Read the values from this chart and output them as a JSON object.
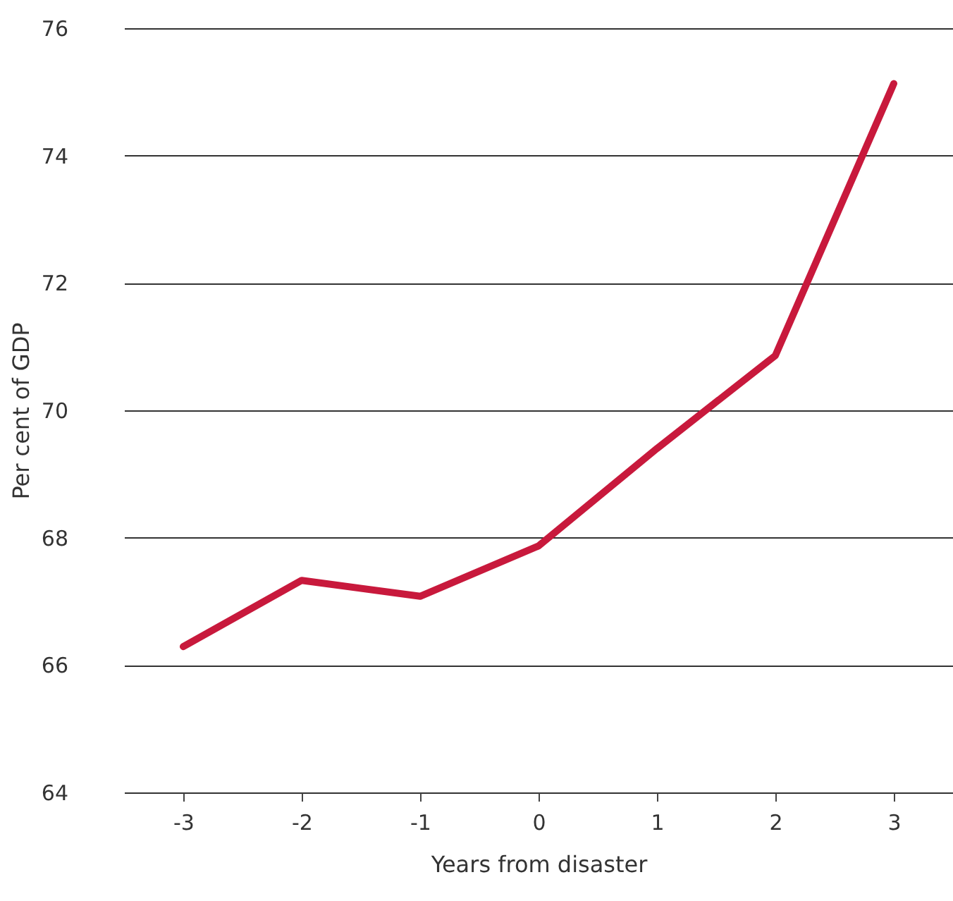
{
  "chart_data": {
    "type": "line",
    "xlabel": "Years from disaster",
    "ylabel": "Per cent of GDP",
    "categories": [
      "-3",
      "-2",
      "-1",
      "0",
      "1",
      "2",
      "3"
    ],
    "series": [
      {
        "color": "#c8193c",
        "values": [
          66.29,
          67.33,
          67.08,
          67.87,
          69.4,
          70.86,
          75.13
        ]
      }
    ],
    "ylim": [
      64,
      76
    ],
    "yticks": [
      64,
      66,
      68,
      70,
      72,
      74,
      76
    ],
    "grid": "y",
    "marker": "none",
    "line_style": "solid"
  }
}
